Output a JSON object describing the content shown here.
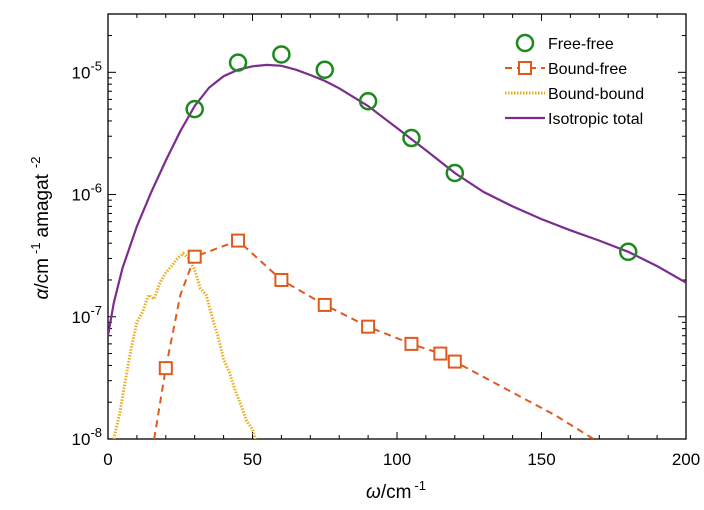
{
  "chart_data": {
    "type": "line",
    "title": "",
    "xlabel": {
      "symbol": "ω",
      "unit": "/cm",
      "exp": "-1"
    },
    "ylabel": {
      "symbol": "α",
      "unit1": "/cm",
      "exp1": "-1",
      "unit2": "amagat",
      "exp2": "-2"
    },
    "xlim": [
      0,
      200
    ],
    "ylim": [
      1e-08,
      3e-05
    ],
    "yscale": "log",
    "grid": false,
    "legend_position": "top-right",
    "x_ticks": [
      0,
      50,
      100,
      150,
      200
    ],
    "x_tick_labels": [
      "0",
      "50",
      "100",
      "150",
      "200"
    ],
    "y_ticks": [
      {
        "value": 1e-08,
        "base": "10",
        "exp": "-8"
      },
      {
        "value": 1e-07,
        "base": "10",
        "exp": "-7"
      },
      {
        "value": 1e-06,
        "base": "10",
        "exp": "-6"
      },
      {
        "value": 1e-05,
        "base": "10",
        "exp": "-5"
      }
    ],
    "series": [
      {
        "name": "Free-free",
        "style": "markers",
        "marker": "circle",
        "color": "#1e8a1e",
        "x": [
          30,
          45,
          60,
          75,
          90,
          105,
          120,
          180
        ],
        "y": [
          5e-06,
          1.2e-05,
          1.4e-05,
          1.05e-05,
          5.8e-06,
          2.9e-06,
          1.5e-06,
          3.4e-07
        ]
      },
      {
        "name": "Bound-free",
        "style": "dashed-line-markers",
        "marker": "square",
        "color": "#e05a1e",
        "x": [
          20,
          30,
          45,
          60,
          75,
          90,
          105,
          115,
          120
        ],
        "y": [
          3.8e-08,
          3.1e-07,
          4.2e-07,
          2e-07,
          1.25e-07,
          8.3e-08,
          6e-08,
          5e-08,
          4.3e-08
        ],
        "line_x": [
          16,
          20,
          25,
          30,
          45,
          60,
          75,
          90,
          105,
          115,
          120,
          140,
          155,
          168
        ],
        "line_y": [
          1e-08,
          3.8e-08,
          1.5e-07,
          3.1e-07,
          4.2e-07,
          2e-07,
          1.25e-07,
          8.3e-08,
          6e-08,
          5e-08,
          4.3e-08,
          2.4e-08,
          1.55e-08,
          1e-08
        ]
      },
      {
        "name": "Bound-bound",
        "style": "dotted-line",
        "color": "#e8b020",
        "x": [
          2,
          4,
          6,
          8,
          10,
          12,
          14,
          16,
          18,
          20,
          22,
          24,
          26,
          28,
          30,
          32,
          34,
          36,
          38,
          40,
          42,
          44,
          46,
          48,
          50,
          51
        ],
        "y": [
          1e-08,
          1.6e-08,
          3e-08,
          5.5e-08,
          9e-08,
          1.1e-07,
          1.5e-07,
          1.4e-07,
          1.9e-07,
          2.3e-07,
          2.6e-07,
          3e-07,
          3.3e-07,
          3e-07,
          2.4e-07,
          1.7e-07,
          1.5e-07,
          1e-07,
          7e-08,
          4.5e-08,
          3.5e-08,
          2.5e-08,
          1.9e-08,
          1.4e-08,
          1.2e-08,
          1e-08
        ]
      },
      {
        "name": "Isotropic total",
        "style": "solid-line",
        "color": "#7b2d8e",
        "x": [
          0,
          2,
          5,
          10,
          15,
          20,
          25,
          30,
          35,
          40,
          45,
          50,
          55,
          60,
          65,
          70,
          75,
          80,
          90,
          100,
          110,
          120,
          130,
          140,
          150,
          160,
          170,
          180,
          190,
          200
        ],
        "y": [
          7e-08,
          1.3e-07,
          2.5e-07,
          5.5e-07,
          1.05e-06,
          1.9e-06,
          3.3e-06,
          5.3e-06,
          7.5e-06,
          9.3e-06,
          1.05e-05,
          1.12e-05,
          1.15e-05,
          1.13e-05,
          1.05e-05,
          9.5e-06,
          8.5e-06,
          7.4e-06,
          5.3e-06,
          3.5e-06,
          2.3e-06,
          1.5e-06,
          1.05e-06,
          8e-07,
          6.3e-07,
          5.1e-07,
          4.2e-07,
          3.4e-07,
          2.6e-07,
          1.9e-07
        ]
      }
    ]
  }
}
